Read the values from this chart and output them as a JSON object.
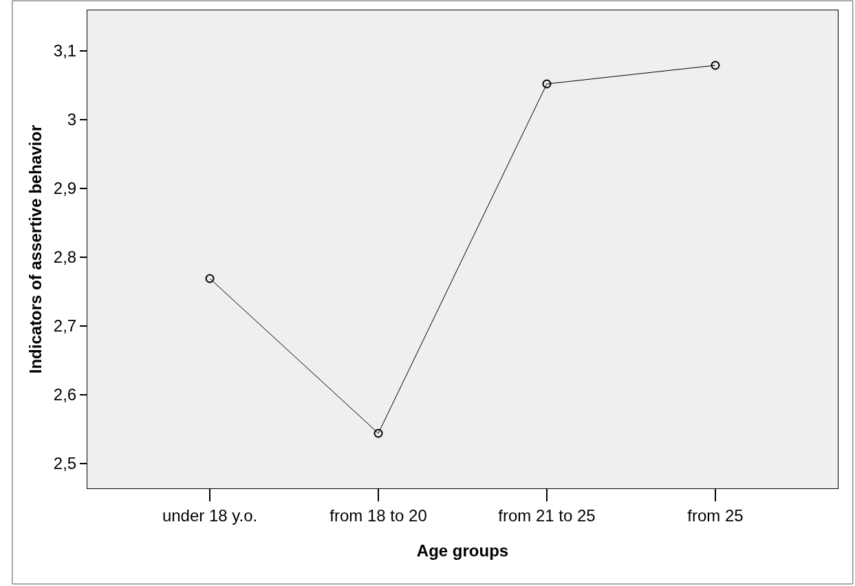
{
  "chart_data": {
    "type": "line",
    "xlabel": "Age groups",
    "ylabel": "Indicators of assertive behavior",
    "categories": [
      "under 18 y.o.",
      "from 18 to 20",
      "from 21 to 25",
      "from 25"
    ],
    "series": [
      {
        "color": "#000000",
        "values": [
          2.769,
          2.544,
          3.052,
          3.079
        ]
      }
    ],
    "ylim": [
      2.464,
      3.159
    ],
    "yticks": [
      {
        "value": 2.5,
        "label": "2,5"
      },
      {
        "value": 2.6,
        "label": "2,6"
      },
      {
        "value": 2.7,
        "label": "2,7"
      },
      {
        "value": 2.8,
        "label": "2,8"
      },
      {
        "value": 2.9,
        "label": "2,9"
      },
      {
        "value": 3,
        "label": "3"
      },
      {
        "value": 3.1,
        "label": "3,1"
      }
    ],
    "marker": "circle",
    "line_style": "solid",
    "grid": false,
    "legend": false
  }
}
